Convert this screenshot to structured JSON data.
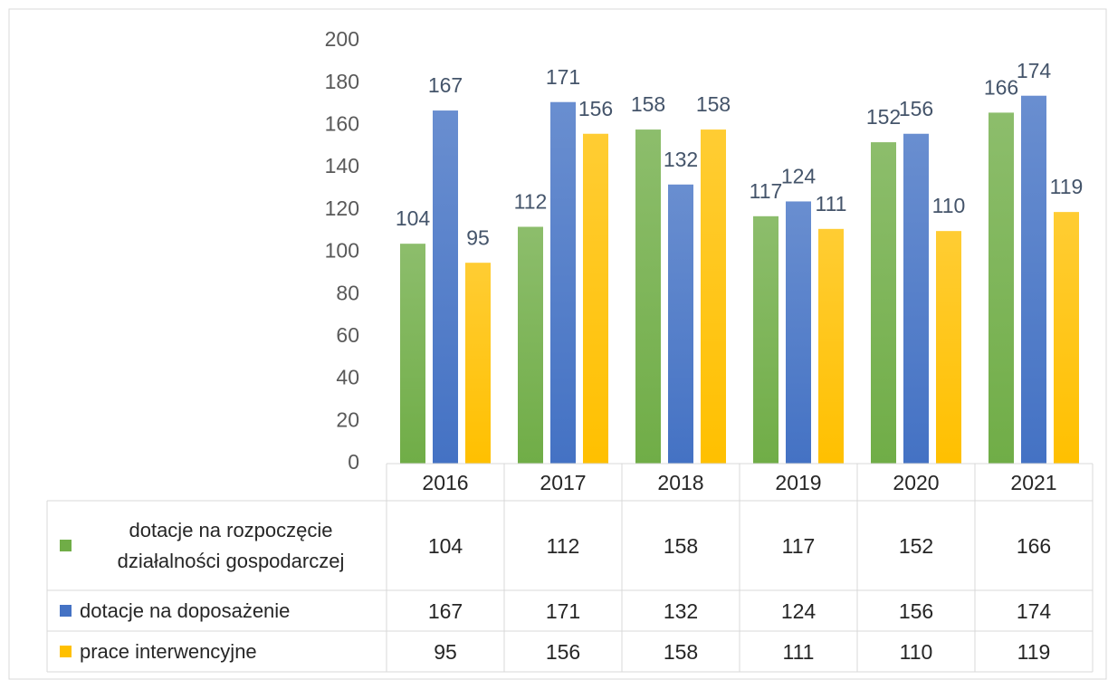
{
  "chart_data": {
    "type": "bar",
    "categories": [
      "2016",
      "2017",
      "2018",
      "2019",
      "2020",
      "2021"
    ],
    "series": [
      {
        "name": "dotacje na rozpoczęcie działalności gospodarczej",
        "color": "#70ad47",
        "values": [
          104,
          112,
          158,
          117,
          152,
          166
        ]
      },
      {
        "name": "dotacje na doposażenie",
        "color": "#4472c4",
        "values": [
          167,
          171,
          132,
          124,
          156,
          174
        ]
      },
      {
        "name": "prace interwencyjne",
        "color": "#ffc000",
        "values": [
          95,
          156,
          158,
          111,
          110,
          119
        ]
      }
    ],
    "ylim": [
      0,
      200
    ],
    "yticks": [
      0,
      20,
      40,
      60,
      80,
      100,
      120,
      140,
      160,
      180,
      200
    ],
    "data_table": true
  }
}
